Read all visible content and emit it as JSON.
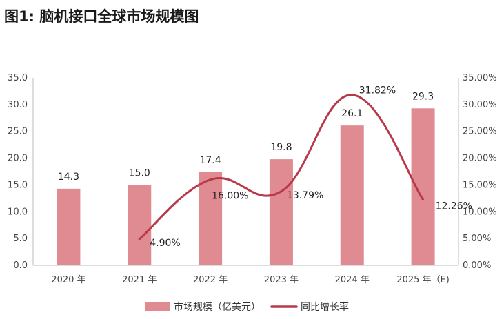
{
  "title": "图1: 脑机接口全球市场规模图",
  "chart_data": {
    "type": "bar",
    "categories": [
      "2020 年",
      "2021 年",
      "2022 年",
      "2023 年",
      "2024 年",
      "2025 年（E)"
    ],
    "series": [
      {
        "name": "市场规模（亿美元）",
        "type": "bar",
        "color": "#e08a91",
        "values": [
          14.3,
          15.0,
          17.4,
          19.8,
          26.1,
          29.3
        ],
        "labels": [
          "14.3",
          "15.0",
          "17.4",
          "19.8",
          "26.1",
          "29.3"
        ]
      },
      {
        "name": "同比增长率",
        "type": "line",
        "axis": "right",
        "color": "#b8394a",
        "values": [
          null,
          4.9,
          16.0,
          13.79,
          31.82,
          12.26
        ],
        "labels": [
          "",
          "4.90%",
          "16.00%",
          "13.79%",
          "31.82%",
          "12.26%"
        ]
      }
    ],
    "ylim_left": [
      0,
      35
    ],
    "ylim_right": [
      0,
      35
    ],
    "left_ticks": [
      "0.0",
      "5.0",
      "10.0",
      "15.0",
      "20.0",
      "25.0",
      "30.0",
      "35.0"
    ],
    "right_ticks": [
      "0.00%",
      "5.00%",
      "10.00%",
      "15.00%",
      "20.00%",
      "25.00%",
      "30.00%",
      "35.00%"
    ],
    "legend": [
      "市场规模（亿美元）",
      "同比增长率"
    ]
  }
}
